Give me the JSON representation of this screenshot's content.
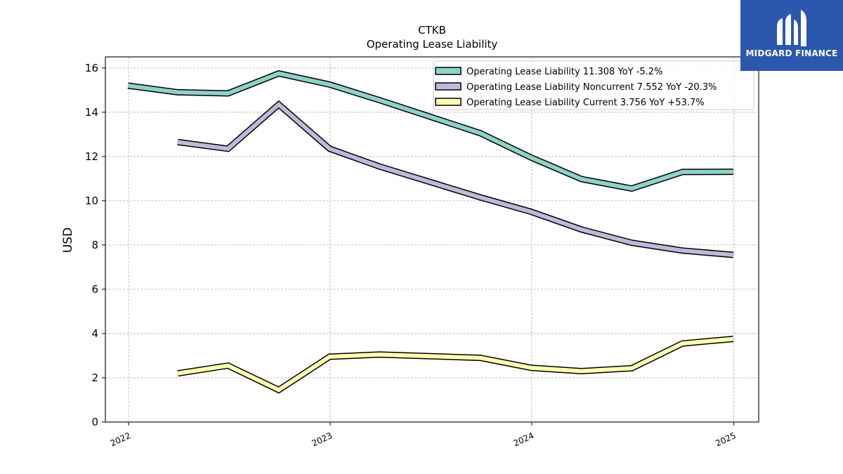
{
  "chart_data": {
    "type": "line",
    "title": "CTKB",
    "subtitle": "Operating Lease Liability",
    "xlabel": "",
    "ylabel": "USD",
    "xlim": [
      "2021-11-20",
      "2025-02-15"
    ],
    "ylim": [
      0,
      16.5
    ],
    "x_ticks": [
      "2022",
      "2023",
      "2024",
      "2025"
    ],
    "y_ticks": [
      0,
      2,
      4,
      6,
      8,
      10,
      12,
      14,
      16
    ],
    "grid": true,
    "legend_position": "top-right",
    "series": [
      {
        "name": "Operating Lease Liability  11.308 YoY -5.2%",
        "color": "#8dd3c7",
        "x": [
          "2021-12-31",
          "2022-03-31",
          "2022-06-30",
          "2022-09-30",
          "2022-12-31",
          "2023-03-31",
          "2023-09-30",
          "2023-12-31",
          "2024-03-31",
          "2024-06-30",
          "2024-09-30",
          "2024-12-31"
        ],
        "values": [
          15.2,
          14.9,
          14.85,
          15.75,
          15.25,
          14.55,
          13.05,
          11.95,
          10.98,
          10.55,
          11.3,
          11.308
        ]
      },
      {
        "name": "Operating Lease Liability Noncurrent  7.552 YoY -20.3%",
        "color": "#bebada",
        "x": [
          "2022-03-31",
          "2022-06-30",
          "2022-09-30",
          "2022-12-31",
          "2023-03-31",
          "2023-09-30",
          "2023-12-31",
          "2024-03-31",
          "2024-06-30",
          "2024-09-30",
          "2024-12-31"
        ],
        "values": [
          12.65,
          12.35,
          14.35,
          12.35,
          11.55,
          10.15,
          9.5,
          8.7,
          8.1,
          7.75,
          7.552
        ]
      },
      {
        "name": "Operating Lease Liability Current  3.756 YoY +53.7%",
        "color": "#ffffb3",
        "x": [
          "2022-03-31",
          "2022-06-30",
          "2022-09-30",
          "2022-12-31",
          "2023-03-31",
          "2023-09-30",
          "2023-12-31",
          "2024-03-31",
          "2024-06-30",
          "2024-09-30",
          "2024-12-31"
        ],
        "values": [
          2.2,
          2.55,
          1.45,
          2.95,
          3.05,
          2.9,
          2.45,
          2.3,
          2.43,
          3.55,
          3.756
        ]
      }
    ]
  },
  "logo": {
    "text": "MIDGARD FINANCE",
    "color": "#2b58ad"
  }
}
